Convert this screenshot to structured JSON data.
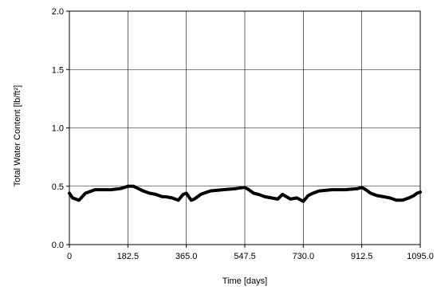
{
  "chart_data": {
    "type": "line",
    "title": "",
    "xlabel": "Time [days]",
    "ylabel": "Total Water Content [lb/ft²]",
    "xlim": [
      0,
      1095
    ],
    "ylim": [
      0,
      2
    ],
    "grid": true,
    "x_ticks": [
      0,
      182.5,
      365,
      547.5,
      730,
      912.5,
      1095
    ],
    "x_tick_labels": [
      "0",
      "182.5",
      "365.0",
      "547.5",
      "730.0",
      "912.5",
      "1095.0"
    ],
    "y_ticks": [
      0,
      0.5,
      1,
      1.5,
      2
    ],
    "y_tick_labels": [
      "0.0",
      "0.5",
      "1.0",
      "1.5",
      "2.0"
    ],
    "series_color": "#000000",
    "series": [
      {
        "x": [
          0,
          10,
          20,
          30,
          40,
          50,
          60,
          80,
          100,
          130,
          160,
          182.5,
          200,
          215,
          230,
          250,
          270,
          290,
          300,
          320,
          340,
          355,
          365,
          380,
          390,
          410,
          440,
          480,
          520,
          547.5,
          560,
          575,
          590,
          610,
          630,
          650,
          665,
          690,
          710,
          730,
          745,
          760,
          780,
          820,
          860,
          900,
          912.5,
          925,
          940,
          960,
          980,
          1000,
          1020,
          1040,
          1060,
          1075,
          1085,
          1095
        ],
        "y": [
          0.44,
          0.4,
          0.39,
          0.38,
          0.41,
          0.44,
          0.45,
          0.47,
          0.47,
          0.47,
          0.48,
          0.5,
          0.5,
          0.48,
          0.46,
          0.44,
          0.43,
          0.41,
          0.41,
          0.4,
          0.38,
          0.43,
          0.44,
          0.38,
          0.39,
          0.43,
          0.46,
          0.47,
          0.48,
          0.49,
          0.47,
          0.44,
          0.43,
          0.41,
          0.4,
          0.39,
          0.43,
          0.39,
          0.4,
          0.37,
          0.42,
          0.44,
          0.46,
          0.47,
          0.47,
          0.48,
          0.49,
          0.47,
          0.44,
          0.42,
          0.41,
          0.4,
          0.38,
          0.38,
          0.4,
          0.42,
          0.44,
          0.45
        ]
      }
    ]
  }
}
